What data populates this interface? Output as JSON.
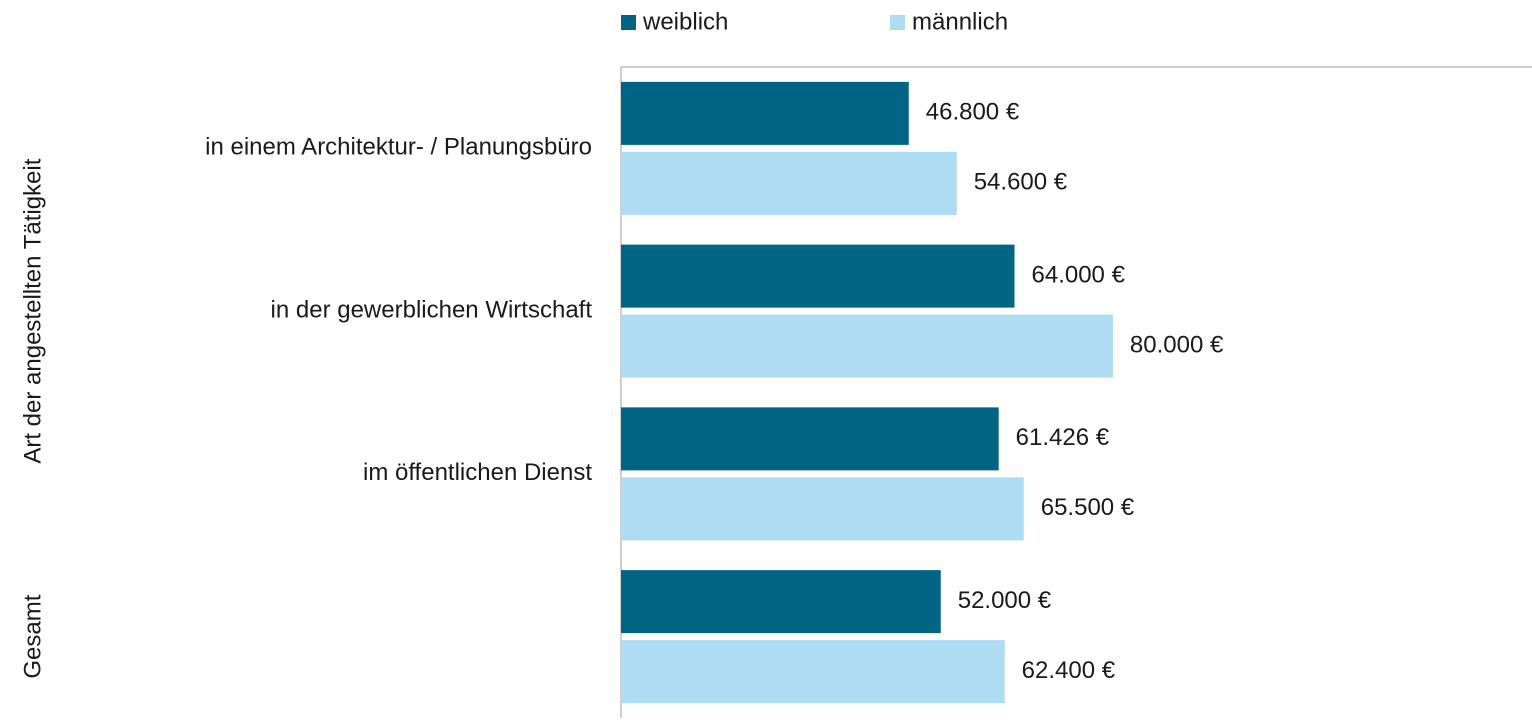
{
  "chart_data": {
    "type": "bar",
    "orientation": "horizontal",
    "categories": [
      "in einem Architektur- / Planungsbüro",
      "in der gewerblichen Wirtschaft",
      "im öffentlichen Dienst",
      null
    ],
    "y_group_labels": [
      "Art der angestellten Tätigkeit",
      "Gesamt"
    ],
    "series": [
      {
        "name": "weiblich",
        "color": "#006482",
        "values": [
          46800,
          64000,
          61426,
          52000
        ],
        "value_labels": [
          "46.800 €",
          "64.000 €",
          "61.426 €",
          "52.000 €"
        ]
      },
      {
        "name": "männlich",
        "color": "#addcf3",
        "values": [
          54600,
          80000,
          65500,
          62400
        ],
        "value_labels": [
          "54.600 €",
          "80.000 €",
          "65.500 €",
          "62.400 €"
        ]
      }
    ],
    "xlim": [
      0,
      148000
    ],
    "legend": "top"
  }
}
